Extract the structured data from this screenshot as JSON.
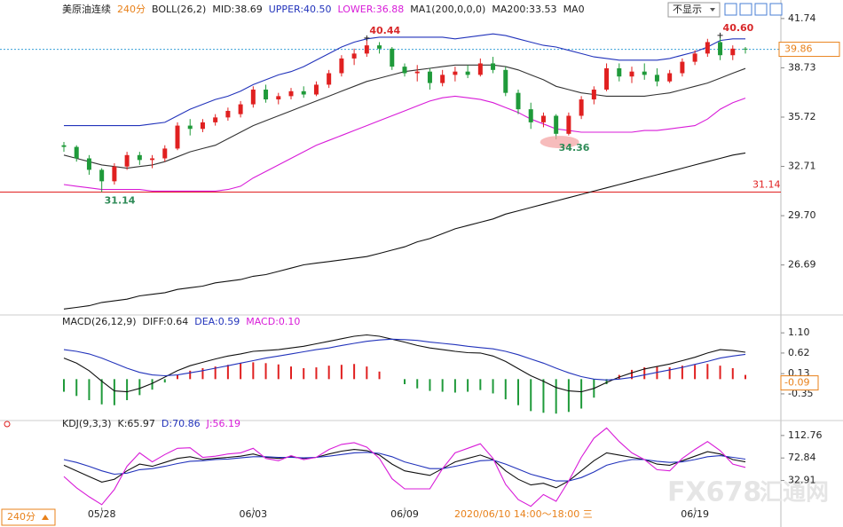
{
  "chart_data": [
    {
      "type": "candlestick",
      "legend": [
        {
          "text": "美原油连续",
          "color": "#222"
        },
        {
          "text": "240分",
          "color": "#e8811a"
        },
        {
          "text": "BOLL(26,2)",
          "color": "#222"
        },
        {
          "text": "MID:38.69",
          "color": "#222"
        },
        {
          "text": "UPPER:40.50",
          "color": "#2233bb"
        },
        {
          "text": "LOWER:36.88",
          "color": "#d81bd8"
        },
        {
          "text": "MA1(200,0,0,0)",
          "color": "#222"
        },
        {
          "text": "MA200:33.53",
          "color": "#222"
        },
        {
          "text": "MA0",
          "color": "#222"
        }
      ],
      "categories": [
        null,
        null,
        null,
        "05/28",
        null,
        null,
        null,
        null,
        null,
        null,
        null,
        null,
        null,
        null,
        null,
        "06/03",
        null,
        null,
        null,
        null,
        null,
        null,
        null,
        null,
        null,
        null,
        null,
        "06/09",
        null,
        null,
        null,
        null,
        null,
        null,
        null,
        null,
        null,
        null,
        null,
        null,
        null,
        null,
        null,
        null,
        null,
        null,
        null,
        null,
        null,
        null,
        "06/19",
        null,
        null,
        null,
        null
      ],
      "open": [
        34.0,
        33.9,
        33.2,
        32.5,
        31.8,
        32.7,
        33.4,
        33.1,
        33.2,
        33.8,
        35.2,
        35.0,
        35.4,
        35.7,
        35.9,
        36.5,
        37.4,
        36.8,
        37.0,
        37.3,
        37.1,
        37.7,
        38.4,
        39.3,
        39.6,
        40.1,
        39.9,
        38.8,
        38.4,
        38.5,
        37.8,
        38.3,
        38.5,
        38.3,
        39.0,
        38.6,
        37.2,
        36.2,
        35.4,
        35.8,
        34.7,
        35.8,
        36.8,
        37.4,
        38.7,
        38.2,
        38.5,
        38.3,
        37.9,
        38.4,
        39.1,
        39.6,
        40.3,
        39.5,
        39.9
      ],
      "high": [
        34.2,
        34.0,
        33.4,
        32.6,
        32.9,
        33.6,
        33.6,
        33.4,
        34.0,
        35.4,
        35.6,
        35.6,
        35.9,
        36.3,
        36.7,
        37.6,
        37.7,
        37.2,
        37.5,
        37.6,
        37.9,
        38.6,
        39.5,
        39.9,
        40.44,
        40.3,
        40.0,
        39.0,
        38.9,
        38.7,
        38.6,
        38.8,
        38.9,
        39.3,
        39.4,
        38.8,
        37.4,
        36.6,
        36.0,
        35.9,
        36.0,
        37.0,
        37.6,
        39.0,
        39.0,
        38.8,
        39.0,
        38.7,
        38.6,
        39.3,
        39.8,
        40.5,
        40.6,
        40.1,
        40.0
      ],
      "low": [
        33.6,
        33.0,
        32.2,
        31.14,
        31.6,
        32.5,
        32.8,
        32.6,
        33.0,
        33.7,
        34.6,
        34.8,
        35.2,
        35.5,
        35.7,
        36.3,
        36.6,
        36.5,
        36.8,
        36.9,
        37.0,
        37.5,
        38.2,
        38.9,
        39.4,
        39.6,
        38.6,
        38.2,
        37.9,
        37.4,
        37.6,
        37.9,
        38.1,
        38.2,
        38.4,
        37.0,
        35.9,
        35.0,
        35.1,
        34.36,
        34.6,
        35.6,
        36.5,
        37.3,
        37.9,
        37.8,
        38.0,
        37.6,
        37.8,
        38.2,
        38.9,
        39.4,
        39.2,
        39.2,
        39.6
      ],
      "close": [
        33.9,
        33.2,
        32.5,
        31.8,
        32.7,
        33.4,
        33.1,
        33.2,
        33.8,
        35.2,
        35.0,
        35.4,
        35.7,
        36.1,
        36.5,
        37.4,
        36.8,
        37.0,
        37.3,
        37.1,
        37.7,
        38.4,
        39.3,
        39.6,
        40.1,
        39.9,
        38.8,
        38.4,
        38.5,
        37.8,
        38.3,
        38.5,
        38.3,
        39.0,
        38.6,
        37.2,
        36.2,
        35.4,
        35.8,
        34.7,
        35.8,
        36.8,
        37.4,
        38.7,
        38.2,
        38.5,
        38.3,
        37.9,
        38.4,
        39.1,
        39.6,
        40.3,
        39.5,
        39.9,
        39.86
      ],
      "up_color": "#e02020",
      "down_color": "#1f9a3a",
      "series": [
        {
          "color": "#2233bb",
          "values": [
            35.2,
            35.2,
            35.2,
            35.2,
            35.2,
            35.2,
            35.2,
            35.3,
            35.4,
            35.8,
            36.2,
            36.5,
            36.8,
            37.0,
            37.3,
            37.7,
            38.0,
            38.3,
            38.5,
            38.8,
            39.2,
            39.6,
            40.0,
            40.3,
            40.5,
            40.6,
            40.6,
            40.6,
            40.6,
            40.6,
            40.6,
            40.5,
            40.6,
            40.7,
            40.8,
            40.7,
            40.5,
            40.3,
            40.1,
            40.0,
            39.8,
            39.6,
            39.4,
            39.3,
            39.2,
            39.2,
            39.2,
            39.2,
            39.3,
            39.5,
            39.7,
            40.0,
            40.4,
            40.5,
            40.5
          ]
        },
        {
          "color": "#333333",
          "values": [
            33.4,
            33.2,
            33.0,
            32.8,
            32.7,
            32.6,
            32.7,
            32.8,
            33.0,
            33.3,
            33.6,
            33.8,
            34.0,
            34.4,
            34.8,
            35.2,
            35.5,
            35.8,
            36.1,
            36.4,
            36.7,
            37.0,
            37.3,
            37.6,
            37.9,
            38.1,
            38.3,
            38.5,
            38.6,
            38.7,
            38.8,
            38.9,
            38.9,
            38.9,
            38.9,
            38.8,
            38.6,
            38.3,
            38.0,
            37.6,
            37.4,
            37.2,
            37.1,
            37.0,
            37.0,
            37.0,
            37.0,
            37.1,
            37.2,
            37.4,
            37.6,
            37.8,
            38.1,
            38.4,
            38.69
          ]
        },
        {
          "color": "#d81bd8",
          "values": [
            31.6,
            31.5,
            31.4,
            31.3,
            31.3,
            31.3,
            31.3,
            31.2,
            31.2,
            31.2,
            31.2,
            31.2,
            31.2,
            31.3,
            31.5,
            32.0,
            32.4,
            32.8,
            33.2,
            33.6,
            34.0,
            34.3,
            34.6,
            34.9,
            35.2,
            35.5,
            35.8,
            36.1,
            36.4,
            36.7,
            36.9,
            37.0,
            36.9,
            36.8,
            36.6,
            36.3,
            36.0,
            35.6,
            35.3,
            35.0,
            34.9,
            34.8,
            34.8,
            34.8,
            34.8,
            34.8,
            34.9,
            34.9,
            35.0,
            35.1,
            35.2,
            35.6,
            36.2,
            36.6,
            36.88
          ]
        },
        {
          "color": "#111111",
          "values": [
            24.0,
            24.1,
            24.2,
            24.4,
            24.5,
            24.6,
            24.8,
            24.9,
            25.0,
            25.2,
            25.3,
            25.4,
            25.6,
            25.7,
            25.8,
            26.0,
            26.1,
            26.3,
            26.5,
            26.7,
            26.8,
            26.9,
            27.0,
            27.1,
            27.2,
            27.4,
            27.6,
            27.8,
            28.1,
            28.3,
            28.6,
            28.9,
            29.1,
            29.3,
            29.5,
            29.8,
            30.0,
            30.2,
            30.4,
            30.6,
            30.8,
            31.0,
            31.2,
            31.4,
            31.6,
            31.8,
            32.0,
            32.2,
            32.4,
            32.6,
            32.8,
            33.0,
            33.2,
            33.4,
            33.53
          ]
        }
      ],
      "annotations": [
        {
          "value": 40.44,
          "label": "40.44",
          "color": "#d8282a"
        },
        {
          "value": 40.6,
          "label": "40.60",
          "color": "#d8282a"
        },
        {
          "value": 34.36,
          "label": "34.36",
          "color": "#2e8b57"
        },
        {
          "value": 31.14,
          "label": "31.14",
          "color": "#2e8b57"
        }
      ],
      "hline": {
        "value": 31.14,
        "label": "31.14",
        "color": "#e02020"
      },
      "last": {
        "value": 39.86,
        "label": "39.86",
        "color": "#e8811a"
      },
      "ylim": [
        23.8,
        42.6
      ],
      "yticks": [
        41.74,
        38.73,
        35.72,
        32.71,
        {
          "value": 29.7,
          "label": "29.70"
        },
        26.69
      ]
    },
    {
      "type": "macd",
      "legend": [
        {
          "text": "MACD(26,12,9)",
          "color": "#222"
        },
        {
          "text": "DIFF:0.64",
          "color": "#222"
        },
        {
          "text": "DEA:0.59",
          "color": "#2233bb"
        },
        {
          "text": "MACD:0.10",
          "color": "#d81bd8"
        }
      ],
      "histogram": [
        -0.3,
        -0.4,
        -0.5,
        -0.6,
        -0.62,
        -0.5,
        -0.38,
        -0.25,
        -0.08,
        0.1,
        0.2,
        0.26,
        0.3,
        0.34,
        0.38,
        0.4,
        0.38,
        0.35,
        0.3,
        0.26,
        0.28,
        0.32,
        0.34,
        0.36,
        0.3,
        0.18,
        0.0,
        -0.12,
        -0.22,
        -0.28,
        -0.3,
        -0.32,
        -0.3,
        -0.26,
        -0.34,
        -0.48,
        -0.62,
        -0.76,
        -0.8,
        -0.82,
        -0.78,
        -0.7,
        -0.44,
        -0.12,
        0.1,
        0.22,
        0.28,
        0.3,
        0.28,
        0.32,
        0.34,
        0.36,
        0.32,
        0.26,
        0.1
      ],
      "up_color": "#e02020",
      "down_color": "#1f9a3a",
      "series": [
        {
          "color": "#111111",
          "values": [
            0.5,
            0.38,
            0.2,
            -0.05,
            -0.28,
            -0.3,
            -0.22,
            -0.1,
            0.05,
            0.2,
            0.32,
            0.4,
            0.48,
            0.55,
            0.6,
            0.66,
            0.68,
            0.7,
            0.74,
            0.78,
            0.84,
            0.9,
            0.96,
            1.02,
            1.05,
            1.02,
            0.95,
            0.88,
            0.8,
            0.74,
            0.7,
            0.66,
            0.63,
            0.62,
            0.55,
            0.42,
            0.25,
            0.08,
            -0.05,
            -0.2,
            -0.28,
            -0.3,
            -0.22,
            -0.08,
            0.05,
            0.15,
            0.24,
            0.3,
            0.36,
            0.44,
            0.52,
            0.62,
            0.7,
            0.68,
            0.64
          ]
        },
        {
          "color": "#2233bb",
          "values": [
            0.7,
            0.66,
            0.6,
            0.5,
            0.38,
            0.26,
            0.16,
            0.1,
            0.08,
            0.1,
            0.15,
            0.2,
            0.26,
            0.32,
            0.38,
            0.44,
            0.5,
            0.55,
            0.6,
            0.65,
            0.7,
            0.74,
            0.8,
            0.85,
            0.9,
            0.93,
            0.95,
            0.94,
            0.92,
            0.88,
            0.85,
            0.82,
            0.78,
            0.75,
            0.72,
            0.66,
            0.58,
            0.48,
            0.38,
            0.26,
            0.15,
            0.06,
            0.0,
            -0.02,
            0.0,
            0.04,
            0.1,
            0.16,
            0.22,
            0.28,
            0.35,
            0.42,
            0.5,
            0.55,
            0.59
          ]
        }
      ],
      "cursor": {
        "value": -0.09,
        "label": "-0.09",
        "color": "#e8811a"
      },
      "ylim": [
        -0.9,
        1.42
      ],
      "yticks": [
        {
          "value": 1.1,
          "label": "1.10"
        },
        0.62,
        0.13,
        -0.35
      ]
    },
    {
      "type": "kdj",
      "legend": [
        {
          "text": "KDJ(9,3,3)",
          "color": "#222"
        },
        {
          "text": "K:65.97",
          "color": "#222"
        },
        {
          "text": "D:70.86",
          "color": "#2233bb"
        },
        {
          "text": "J:56.19",
          "color": "#d81bd8"
        }
      ],
      "series": [
        {
          "color": "#111111",
          "values": [
            60,
            50,
            40,
            30,
            35,
            50,
            62,
            58,
            65,
            72,
            75,
            70,
            72,
            74,
            76,
            80,
            74,
            72,
            75,
            72,
            74,
            80,
            85,
            88,
            86,
            78,
            62,
            50,
            46,
            42,
            54,
            66,
            72,
            78,
            70,
            50,
            35,
            25,
            28,
            20,
            32,
            50,
            68,
            82,
            78,
            74,
            70,
            62,
            60,
            68,
            76,
            84,
            80,
            70,
            65.97
          ]
        },
        {
          "color": "#2233bb",
          "values": [
            70,
            65,
            58,
            50,
            44,
            46,
            52,
            54,
            58,
            63,
            67,
            68,
            70,
            71,
            73,
            75,
            75,
            74,
            74,
            73,
            74,
            76,
            79,
            82,
            83,
            81,
            75,
            66,
            60,
            54,
            54,
            58,
            63,
            68,
            69,
            62,
            53,
            44,
            38,
            32,
            32,
            38,
            48,
            60,
            66,
            70,
            70,
            67,
            65,
            66,
            70,
            75,
            77,
            74,
            70.86
          ]
        },
        {
          "color": "#d81bd8",
          "values": [
            40,
            20,
            4,
            -10,
            17,
            58,
            82,
            66,
            79,
            90,
            91,
            74,
            76,
            80,
            82,
            90,
            72,
            68,
            77,
            70,
            74,
            88,
            97,
            100,
            92,
            72,
            36,
            18,
            18,
            18,
            54,
            82,
            90,
            98,
            72,
            26,
            -1,
            -13,
            8,
            -4,
            32,
            74,
            108,
            126,
            102,
            82,
            70,
            52,
            50,
            72,
            88,
            102,
            86,
            62,
            56.19
          ]
        }
      ],
      "ylim": [
        -15,
        133
      ],
      "yticks": [
        112.76,
        72.84,
        32.91
      ]
    }
  ],
  "period_selector": "240分",
  "crosshair_label": "2020/06/10 14:00～18:00 三",
  "toolbar": {
    "dropdown": "不显示"
  },
  "watermark": [
    "FX678",
    "汇通网"
  ]
}
